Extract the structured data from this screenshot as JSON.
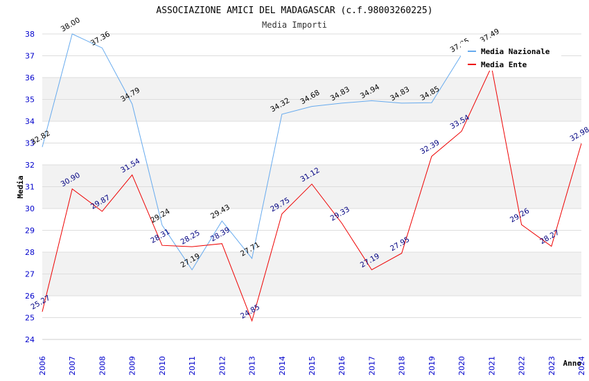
{
  "chart_data": {
    "type": "line",
    "title": "ASSOCIAZIONE AMICI DEL MADAGASCAR (c.f.98003260225)",
    "subtitle": "Media Importi",
    "xlabel": "Anno",
    "ylabel": "Media",
    "ylim": [
      24,
      38
    ],
    "yticks": [
      "24",
      "25",
      "26",
      "27",
      "28",
      "29",
      "30",
      "31",
      "32",
      "33",
      "34",
      "35",
      "36",
      "37",
      "38"
    ],
    "categories": [
      "2006",
      "2007",
      "2008",
      "2009",
      "2010",
      "2011",
      "2012",
      "2013",
      "2014",
      "2015",
      "2016",
      "2017",
      "2018",
      "2019",
      "2020",
      "2021",
      "2022",
      "2023",
      "2024"
    ],
    "grid": "horizontal bands",
    "legend_position": "top-right",
    "series": [
      {
        "name": "Media Nazionale",
        "color": "#66aaee",
        "label_color": "#000000",
        "values": [
          32.82,
          38.0,
          37.36,
          34.79,
          29.24,
          27.19,
          29.43,
          27.71,
          34.32,
          34.68,
          34.83,
          34.94,
          34.83,
          34.85,
          37.05,
          37.49,
          null,
          null,
          null
        ],
        "labels": [
          "32.82",
          "38.00",
          "37.36",
          "34.79",
          "29.24",
          "27.19",
          "29.43",
          "27.71",
          "34.32",
          "34.68",
          "34.83",
          "34.94",
          "34.83",
          "34.85",
          "37.05",
          "37.49",
          "",
          "",
          ""
        ]
      },
      {
        "name": "Media Ente",
        "color": "#ee0000",
        "label_color": "#000080",
        "values": [
          25.27,
          30.9,
          29.87,
          31.54,
          28.31,
          28.25,
          28.39,
          24.85,
          29.75,
          31.12,
          29.33,
          27.19,
          27.95,
          32.39,
          33.54,
          36.5,
          29.26,
          28.27,
          32.98
        ],
        "labels": [
          "25.27",
          "30.90",
          "29.87",
          "31.54",
          "28.31",
          "28.25",
          "28.39",
          "24.85",
          "29.75",
          "31.12",
          "29.33",
          "27.19",
          "27.95",
          "32.39",
          "33.54",
          "",
          "29.26",
          "28.27",
          "32.98"
        ]
      }
    ]
  }
}
